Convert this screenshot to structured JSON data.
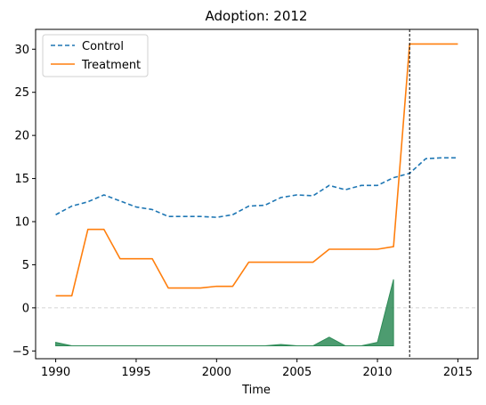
{
  "chart_data": {
    "type": "line",
    "title": "Adoption: 2012",
    "xlabel": "Time",
    "ylabel": "",
    "xlim": [
      1988.75,
      2016.25
    ],
    "ylim": [
      -5.9,
      32.3
    ],
    "xticks": [
      1990,
      1995,
      2000,
      2005,
      2010,
      2015
    ],
    "yticks": [
      -5,
      0,
      5,
      10,
      15,
      20,
      25,
      30
    ],
    "zero_line": 0,
    "adoption_year": 2012,
    "legend_position": "upper-left",
    "x": [
      1990,
      1991,
      1992,
      1993,
      1994,
      1995,
      1996,
      1997,
      1998,
      1999,
      2000,
      2001,
      2002,
      2003,
      2004,
      2005,
      2006,
      2007,
      2008,
      2009,
      2010,
      2011,
      2012,
      2013,
      2014,
      2015
    ],
    "series": [
      {
        "name": "Control",
        "style": "dashed",
        "color": "#1f77b4",
        "values": [
          10.8,
          11.8,
          12.3,
          13.1,
          12.4,
          11.7,
          11.4,
          10.6,
          10.6,
          10.6,
          10.5,
          10.8,
          11.8,
          11.9,
          12.8,
          13.1,
          13.0,
          14.2,
          13.7,
          14.2,
          14.2,
          15.1,
          15.6,
          17.3,
          17.4,
          17.4
        ]
      },
      {
        "name": "Treatment",
        "style": "solid",
        "color": "#ff7f0e",
        "values": [
          1.4,
          1.4,
          9.1,
          9.1,
          5.7,
          5.7,
          5.7,
          2.3,
          2.3,
          2.3,
          2.5,
          2.5,
          5.3,
          5.3,
          5.3,
          5.3,
          5.3,
          6.8,
          6.8,
          6.8,
          6.8,
          7.1,
          30.6,
          30.6,
          30.6,
          30.6
        ]
      }
    ],
    "difference_area": {
      "color": "#2e8b57",
      "baseline": -4.4,
      "x": [
        1990,
        1991,
        1992,
        1993,
        1994,
        1995,
        1996,
        1997,
        1998,
        1999,
        2000,
        2001,
        2002,
        2003,
        2004,
        2005,
        2006,
        2007,
        2008,
        2009,
        2010,
        2011
      ],
      "values": [
        -4.0,
        -4.4,
        -4.4,
        -4.4,
        -4.4,
        -4.4,
        -4.4,
        -4.4,
        -4.4,
        -4.4,
        -4.4,
        -4.4,
        -4.4,
        -4.4,
        -4.25,
        -4.4,
        -4.4,
        -3.4,
        -4.4,
        -4.4,
        -4.0,
        3.3
      ]
    }
  }
}
